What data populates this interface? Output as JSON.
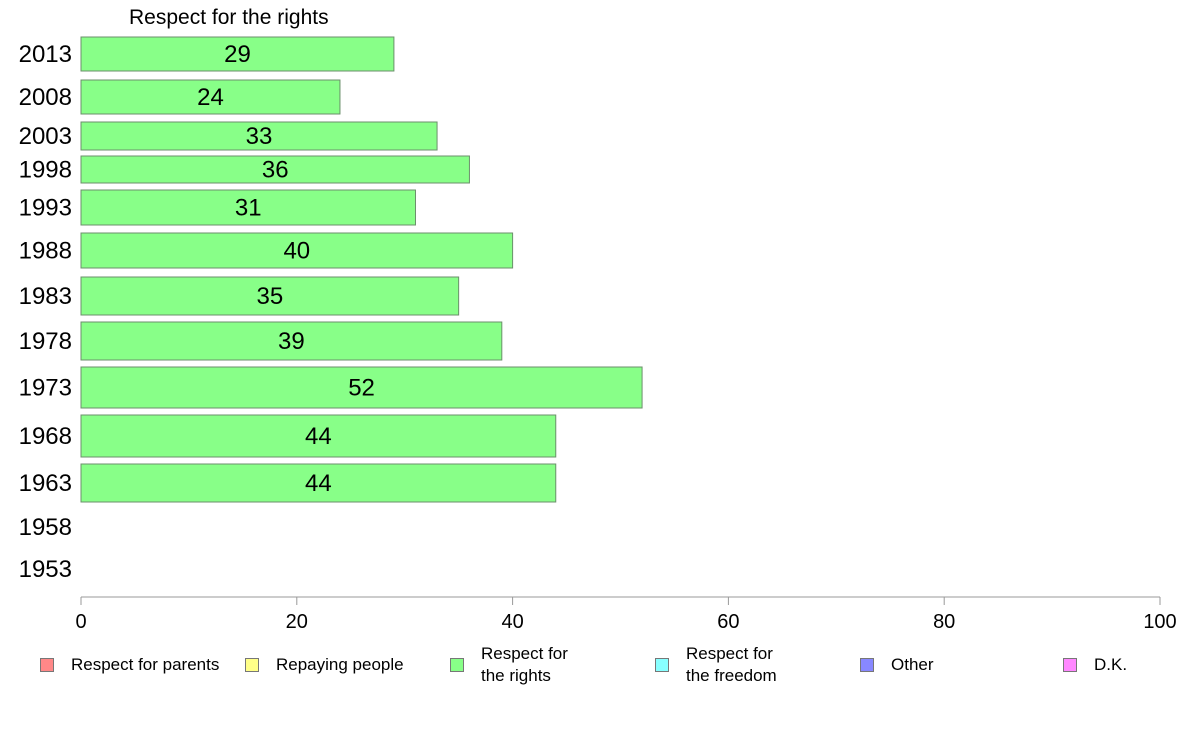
{
  "chart_data": {
    "type": "bar",
    "orientation": "horizontal",
    "title": "Respect for the rights",
    "categories": [
      "2013",
      "2008",
      "2003",
      "1998",
      "1993",
      "1988",
      "1983",
      "1978",
      "1973",
      "1968",
      "1963",
      "1958",
      "1953"
    ],
    "series": [
      {
        "name": "Respect for the rights",
        "color": "#88ff88",
        "values": [
          29,
          24,
          33,
          36,
          31,
          40,
          35,
          39,
          52,
          44,
          44,
          null,
          null
        ]
      }
    ],
    "value_labels": [
      "29",
      "24",
      "33",
      "36",
      "31",
      "40",
      "35",
      "39",
      "52",
      "44",
      "44",
      "",
      ""
    ],
    "xlim": [
      0,
      100
    ],
    "xticks": [
      "0",
      "20",
      "40",
      "60",
      "80",
      "100"
    ],
    "grid": false,
    "legend_position": "bottom",
    "legend": [
      {
        "label": "Respect for parents",
        "color": "#ff8888"
      },
      {
        "label": "Repaying people",
        "color": "#ffff88"
      },
      {
        "label": "Respect for\nthe rights",
        "color": "#88ff88"
      },
      {
        "label": "Respect for\nthe freedom",
        "color": "#88ffff"
      },
      {
        "label": "Other",
        "color": "#8888ff"
      },
      {
        "label": "D.K.",
        "color": "#ff88ff"
      }
    ]
  }
}
